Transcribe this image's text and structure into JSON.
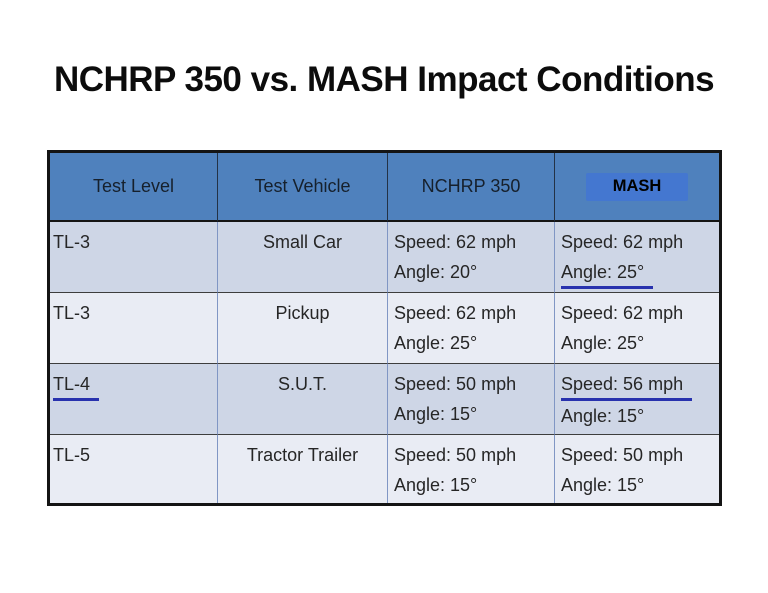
{
  "title": "NCHRP 350 vs. MASH Impact Conditions",
  "table": {
    "headers": [
      "Test Level",
      "Test Vehicle",
      "NCHRP 350",
      "MASH"
    ],
    "rows": [
      {
        "test_level": "TL-3",
        "test_level_underline": false,
        "vehicle": "Small Car",
        "nchrp": {
          "speed": "Speed: 62 mph",
          "angle": "Angle: 20°"
        },
        "mash": {
          "speed": "Speed: 62 mph",
          "speed_underline": false,
          "angle": "Angle: 25°",
          "angle_underline": true
        }
      },
      {
        "test_level": "TL-3",
        "test_level_underline": false,
        "vehicle": "Pickup",
        "nchrp": {
          "speed": "Speed: 62 mph",
          "angle": "Angle: 25°"
        },
        "mash": {
          "speed": "Speed: 62 mph",
          "speed_underline": false,
          "angle": "Angle: 25°",
          "angle_underline": false
        }
      },
      {
        "test_level": "TL-4",
        "test_level_underline": true,
        "vehicle": "S.U.T.",
        "nchrp": {
          "speed": "Speed: 50 mph",
          "angle": "Angle: 15°"
        },
        "mash": {
          "speed": "Speed: 56 mph",
          "speed_underline": true,
          "angle": "Angle: 15°",
          "angle_underline": false
        }
      },
      {
        "test_level": "TL-5",
        "test_level_underline": false,
        "vehicle": "Tractor Trailer",
        "nchrp": {
          "speed": "Speed: 50 mph",
          "angle": "Angle: 15°"
        },
        "mash": {
          "speed": "Speed: 50 mph",
          "speed_underline": false,
          "angle": "Angle: 15°",
          "angle_underline": false
        }
      }
    ]
  },
  "colors": {
    "header_blue": "#4f81bd",
    "mash_highlight_blue": "#4477d0",
    "row_stripe_dark": "#ced6e6",
    "row_stripe_light": "#e9ecf4",
    "ink_annotation_blue": "#2832ae",
    "outer_border": "#141414",
    "body_divider_blue": "#8096c4",
    "background": "#ffffff"
  }
}
